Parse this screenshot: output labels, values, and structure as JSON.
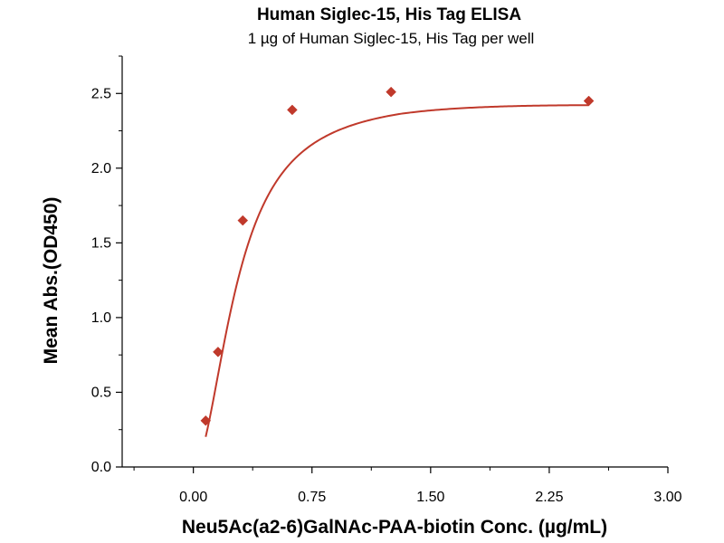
{
  "chart_data": {
    "type": "scatter",
    "title": "Human Siglec-15, His Tag ELISA",
    "subtitle": "1 µg of Human Siglec-15, His Tag per well",
    "xlabel": "Neu5Ac(a2-6)GalNAc-PAA-biotin Conc. (µg/mL)",
    "ylabel": "Mean Abs.(OD450)",
    "xlim": [
      -0.45,
      3.0
    ],
    "ylim": [
      0.0,
      2.75
    ],
    "x_ticks": [
      "0.00",
      "0.75",
      "1.50",
      "2.25",
      "3.00"
    ],
    "x_tick_values": [
      0.0,
      0.75,
      1.5,
      2.25,
      3.0
    ],
    "y_ticks": [
      "0.0",
      "0.5",
      "1.0",
      "1.5",
      "2.0",
      "2.5"
    ],
    "y_tick_values": [
      0.0,
      0.5,
      1.0,
      1.5,
      2.0,
      2.5
    ],
    "grid": false,
    "marker": "diamond",
    "series": [
      {
        "x": [
          0.078,
          0.156,
          0.3125,
          0.625,
          1.25,
          2.5
        ],
        "y": [
          0.31,
          0.77,
          1.65,
          2.39,
          2.51,
          2.45
        ],
        "color": "#c0392b",
        "fit_line": true
      }
    ]
  }
}
